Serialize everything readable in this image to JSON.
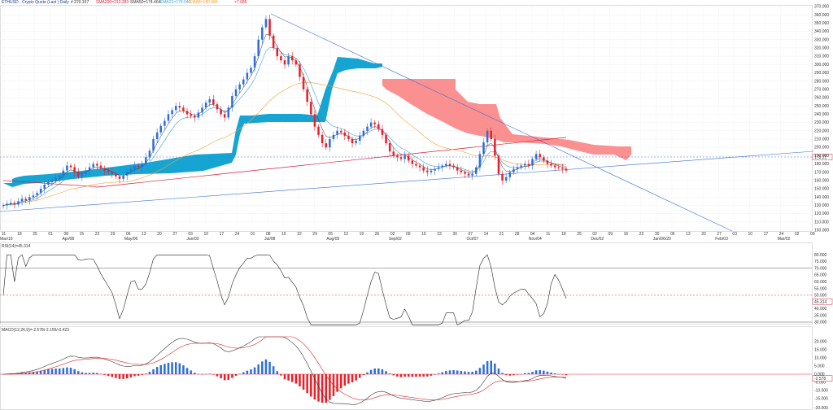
{
  "header": {
    "symbol": "ETHUSD - Crypto Quote (Last ) Daily",
    "last": "# 220.157",
    "sma200": "SMA200=213.283",
    "sma50": "SMA50=174.464",
    "ema21": "EMA21=179.040",
    "ema_other": "EMA8=180.686",
    "change": "+7.685"
  },
  "colors": {
    "up": "#2e6ed8",
    "down": "#e8202a",
    "sma200": "#d8203a",
    "sma50": "#f5a030",
    "ema21": "#3aa0d8",
    "cloud_bull": "#0aa0d0",
    "cloud_bear": "#fb8a8a",
    "rsi": "#222222",
    "macd": "#333333",
    "signal": "#e02020",
    "trend": "#3a6fd8"
  },
  "main_axis": {
    "labels": [
      "370.000",
      "360.000",
      "350.000",
      "340.000",
      "330.000",
      "320.000",
      "310.000",
      "300.000",
      "290.000",
      "280.000",
      "270.000",
      "260.000",
      "250.000",
      "240.000",
      "230.000",
      "220.000",
      "210.000",
      "200.000",
      "190.000",
      "180.000",
      "170.000",
      "160.000",
      "150.000",
      "140.000",
      "130.000",
      "120.000",
      "110.000",
      "100.000"
    ],
    "price_tag": "178.21"
  },
  "rsi": {
    "label": "RSI(14)=45.314",
    "axis": [
      "80.000",
      "75.000",
      "70.000",
      "65.000",
      "60.000",
      "55.000",
      "50.000",
      "45.000",
      "40.000",
      "35.000",
      "30.000"
    ],
    "value_tag": "45.314"
  },
  "macd": {
    "label": "MACD(12,26,9)=-2.578/-2.155/-0.423",
    "axis": [
      "20.000",
      "15.000",
      "10.000",
      "5.000",
      "0.000",
      "-5.000",
      "-10.000",
      "-15.000"
    ],
    "value_tag": "-2.578",
    "bottom_label": "-20.000"
  },
  "x_axis": {
    "days": [
      "11",
      "18",
      "25",
      "01",
      "08",
      "15",
      "22",
      "29",
      "06",
      "13",
      "20",
      "27",
      "03",
      "10",
      "17",
      "24",
      "01",
      "08",
      "15",
      "22",
      "29",
      "05",
      "12",
      "19",
      "26",
      "02",
      "09",
      "16",
      "23",
      "30",
      "07",
      "14",
      "21",
      "28",
      "04",
      "11",
      "18",
      "25",
      "02",
      "09",
      "16",
      "23",
      "30",
      "06",
      "13",
      "20",
      "27",
      "03",
      "10",
      "17",
      "24",
      "02",
      "09"
    ],
    "months": [
      {
        "label": "Mar/19",
        "i": 0
      },
      {
        "label": "Apr/08",
        "i": 4
      },
      {
        "label": "May/06",
        "i": 8
      },
      {
        "label": "Jun/03",
        "i": 12
      },
      {
        "label": "Jul/08",
        "i": 17
      },
      {
        "label": "Aug/05",
        "i": 21
      },
      {
        "label": "Sep/02",
        "i": 25
      },
      {
        "label": "Oct/07",
        "i": 30
      },
      {
        "label": "Nov/04",
        "i": 34
      },
      {
        "label": "Dec/02",
        "i": 38
      },
      {
        "label": "Jan/06/20",
        "i": 42
      },
      {
        "label": "Feb/03",
        "i": 46
      },
      {
        "label": "Mar/02",
        "i": 50
      }
    ]
  },
  "chart_data": {
    "type": "candlestick",
    "ylim": [
      100,
      370
    ],
    "price_series": [
      130,
      132,
      133,
      131,
      135,
      138,
      136,
      140,
      142,
      145,
      150,
      155,
      158,
      160,
      163,
      166,
      172,
      178,
      176,
      170,
      165,
      168,
      172,
      176,
      180,
      178,
      175,
      172,
      170,
      168,
      165,
      162,
      166,
      170,
      174,
      178,
      176,
      180,
      188,
      196,
      210,
      218,
      226,
      232,
      240,
      245,
      250,
      248,
      244,
      240,
      238,
      236,
      242,
      248,
      254,
      258,
      252,
      246,
      240,
      236,
      248,
      262,
      270,
      276,
      282,
      290,
      296,
      310,
      330,
      345,
      355,
      335,
      320,
      310,
      305,
      300,
      310,
      305,
      300,
      285,
      270,
      255,
      240,
      225,
      215,
      205,
      200,
      210,
      215,
      220,
      218,
      214,
      210,
      205,
      208,
      214,
      220,
      225,
      230,
      228,
      222,
      215,
      205,
      195,
      190,
      188,
      186,
      190,
      184,
      180,
      178,
      176,
      172,
      170,
      172,
      174,
      176,
      178,
      180,
      178,
      176,
      172,
      170,
      168,
      166,
      168,
      176,
      192,
      206,
      220,
      210,
      190,
      168,
      160,
      164,
      170,
      174,
      176,
      178,
      180,
      178,
      186,
      192,
      188,
      184,
      180,
      178,
      176,
      175,
      174,
      172
    ]
  }
}
